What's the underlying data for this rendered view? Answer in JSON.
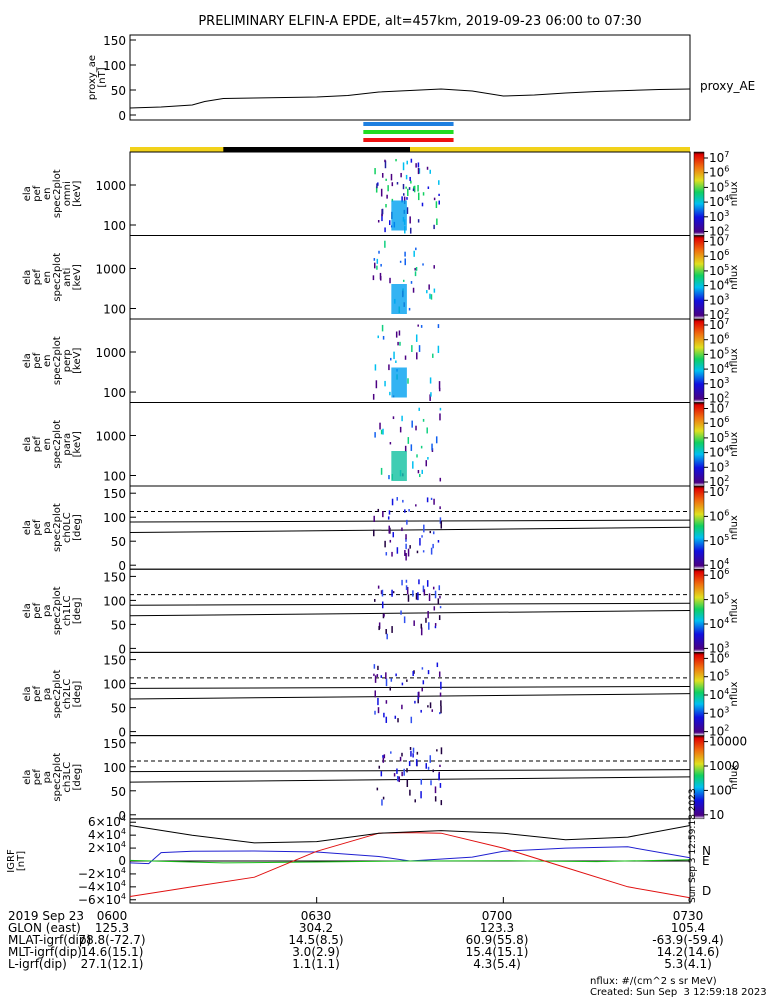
{
  "title": "PRELIMINARY ELFIN-A EPDE, alt=457km, 2019-09-23 06:00 to 07:30",
  "colors": {
    "sun_bar": "#f2d21a",
    "shadow_bar": "#000000",
    "blue_bar": "#1e7fe0",
    "green_bar": "#22dd22",
    "red_bar": "#ee1111",
    "N_color": "#1f1fd0",
    "E_color": "#18c018",
    "D_color": "#e01010"
  },
  "ae_panel": {
    "ylabel": "proxy_ae\n[nT]",
    "ylabel_lines": [
      "proxy_ae",
      "[nT]"
    ],
    "yticks": [
      "150",
      "100",
      "50",
      "0"
    ],
    "legend": "proxy_AE"
  },
  "spec_panels": [
    {
      "ylabel_lines": [
        "ela",
        "pef",
        "en",
        "spec2plot",
        "omni",
        "[keV]"
      ],
      "yticks": [
        "1000",
        "100"
      ],
      "cbar_label": "nflux",
      "cbar_ticks": [
        "10^7",
        "10^6",
        "10^5",
        "10^4",
        "10^3",
        "10^2"
      ]
    },
    {
      "ylabel_lines": [
        "ela",
        "pef",
        "en",
        "spec2plot",
        "anti",
        "[keV]"
      ],
      "yticks": [
        "1000",
        "100"
      ],
      "cbar_label": "nflux",
      "cbar_ticks": [
        "10^7",
        "10^6",
        "10^5",
        "10^4",
        "10^3",
        "10^2"
      ]
    },
    {
      "ylabel_lines": [
        "ela",
        "pef",
        "en",
        "spec2plot",
        "perp",
        "[keV]"
      ],
      "yticks": [
        "1000",
        "100"
      ],
      "cbar_label": "nflux",
      "cbar_ticks": [
        "10^7",
        "10^6",
        "10^5",
        "10^4",
        "10^3",
        "10^2"
      ]
    },
    {
      "ylabel_lines": [
        "ela",
        "pef",
        "en",
        "spec2plot",
        "para",
        "[keV]"
      ],
      "yticks": [
        "1000",
        "100"
      ],
      "cbar_label": "nflux",
      "cbar_ticks": [
        "10^7",
        "10^6",
        "10^5",
        "10^4",
        "10^3",
        "10^2"
      ]
    }
  ],
  "pa_panels": [
    {
      "ylabel_lines": [
        "ela",
        "pef",
        "pa",
        "spec2plot",
        "ch0LC",
        "[deg]"
      ],
      "yticks": [
        "150",
        "100",
        "50",
        "0"
      ],
      "cbar_label": "nflux",
      "cbar_ticks": [
        "10^7",
        "10^6",
        "10^5",
        "10^4"
      ]
    },
    {
      "ylabel_lines": [
        "ela",
        "pef",
        "pa",
        "spec2plot",
        "ch1LC",
        "[deg]"
      ],
      "yticks": [
        "150",
        "100",
        "50",
        "0"
      ],
      "cbar_label": "nflux",
      "cbar_ticks": [
        "10^6",
        "10^5",
        "10^4",
        "10^3"
      ]
    },
    {
      "ylabel_lines": [
        "ela",
        "pef",
        "pa",
        "spec2plot",
        "ch2LC",
        "[deg]"
      ],
      "yticks": [
        "150",
        "100",
        "50",
        "0"
      ],
      "cbar_label": "nflux",
      "cbar_ticks": [
        "10^6",
        "10^5",
        "10^4",
        "10^3",
        "10^2"
      ]
    },
    {
      "ylabel_lines": [
        "ela",
        "pef",
        "pa",
        "spec2plot",
        "ch3LC",
        "[deg]"
      ],
      "yticks": [
        "150",
        "100",
        "50",
        "0"
      ],
      "cbar_label": "nflux",
      "cbar_ticks": [
        "10000",
        "1000",
        "100",
        "10"
      ]
    }
  ],
  "igrf_panel": {
    "ylabel_lines": [
      "IGRF",
      "[nT]"
    ],
    "yticks": [
      "6×10^4",
      "4×10^4",
      "2×10^4",
      "0",
      "−2×10^4",
      "−4×10^4",
      "−6×10^4"
    ],
    "legend": [
      "N",
      "E",
      "D"
    ],
    "side_text": "Sun Sep  3 12:59:18 2023"
  },
  "footer": {
    "rows": [
      {
        "label": "2019 Sep 23",
        "values": [
          "0600",
          "0630",
          "0700",
          "0730"
        ]
      },
      {
        "label": "GLON (east)",
        "values": [
          "125.3",
          "304.2",
          "123.3",
          "105.4"
        ]
      },
      {
        "label": "MLAT-igrf(dip)",
        "values": [
          "78.8(-72.7)",
          "14.5(8.5)",
          "60.9(55.8)",
          "-63.9(-59.4)"
        ]
      },
      {
        "label": "MLT-igrf(dip)",
        "values": "14.6(15.1)|3.0(2.9)|15.4(15.1)|14.2(14.6)"
      },
      {
        "label": "L-igrf(dip)",
        "values": "27.1(12.1)|1.1(1.1)|4.3(5.4)|5.3(4.1)"
      }
    ],
    "units": "nflux: #/(cm^2 s sr MeV)",
    "created": "Created: Sun Sep  3 12:59:18 2023"
  },
  "chart_data": [
    {
      "type": "line",
      "name_ref": "ae_panel",
      "x_unit": "time (UT)",
      "x": [
        "06:00",
        "06:05",
        "06:10",
        "06:12",
        "06:15",
        "06:20",
        "06:25",
        "06:30",
        "06:35",
        "06:40",
        "06:45",
        "06:50",
        "06:55",
        "07:00",
        "07:05",
        "07:10",
        "07:15",
        "07:20",
        "07:25",
        "07:30"
      ],
      "y": [
        14,
        16,
        20,
        27,
        33,
        34,
        35,
        36,
        39,
        46,
        49,
        52,
        48,
        38,
        40,
        44,
        47,
        49,
        51,
        52
      ],
      "ylim": [
        0,
        160
      ],
      "ytick_values": [
        0,
        50,
        100,
        150
      ]
    },
    {
      "type": "line",
      "name_ref": "igrf_panel",
      "x_unit": "time (UT)",
      "ylim": [
        -65000,
        65000
      ],
      "ytick_values": [
        60000,
        40000,
        20000,
        0,
        -20000,
        -40000,
        -60000
      ],
      "series": [
        {
          "name": "N",
          "x": [
            0,
            3,
            5,
            10,
            20,
            30,
            40,
            45,
            55,
            60,
            70,
            80,
            90
          ],
          "y": [
            -3000,
            -4000,
            13000,
            15000,
            15500,
            14000,
            7000,
            0,
            6000,
            15000,
            20000,
            22000,
            5000
          ]
        },
        {
          "name": "E",
          "x": [
            0,
            5,
            15,
            30,
            45,
            60,
            75,
            90
          ],
          "y": [
            1000,
            -500,
            -3000,
            -1500,
            0,
            500,
            -1000,
            2000
          ]
        },
        {
          "name": "D",
          "x": [
            0,
            10,
            20,
            30,
            40,
            45,
            50,
            60,
            70,
            80,
            90
          ],
          "y": [
            -55000,
            -40000,
            -25000,
            15000,
            43000,
            44000,
            43000,
            20000,
            -10000,
            -40000,
            -57000
          ]
        },
        {
          "name": "F",
          "x": [
            0,
            10,
            20,
            30,
            40,
            50,
            60,
            70,
            80,
            90
          ],
          "y": [
            55000,
            40000,
            28000,
            30000,
            43000,
            47000,
            43000,
            33000,
            37000,
            55000
          ]
        }
      ]
    }
  ]
}
